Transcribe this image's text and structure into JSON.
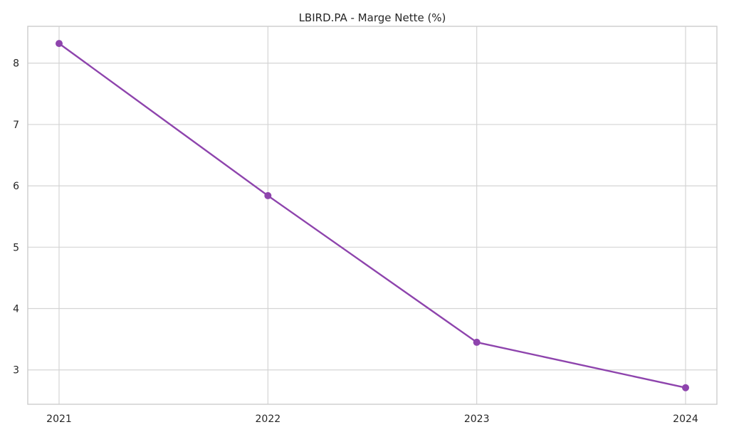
{
  "chart_data": {
    "type": "line",
    "title": "LBIRD.PA - Marge Nette (%)",
    "xlabel": "",
    "ylabel": "",
    "x": [
      "2021",
      "2022",
      "2023",
      "2024"
    ],
    "series": [
      {
        "values": [
          8.32,
          5.84,
          3.45,
          2.71
        ],
        "color": "#8e44ad",
        "marker": "circle"
      }
    ],
    "ylim": [
      2.44,
      8.6
    ],
    "yticks": [
      3,
      4,
      5,
      6,
      7,
      8
    ],
    "grid": true,
    "legend": "none"
  }
}
